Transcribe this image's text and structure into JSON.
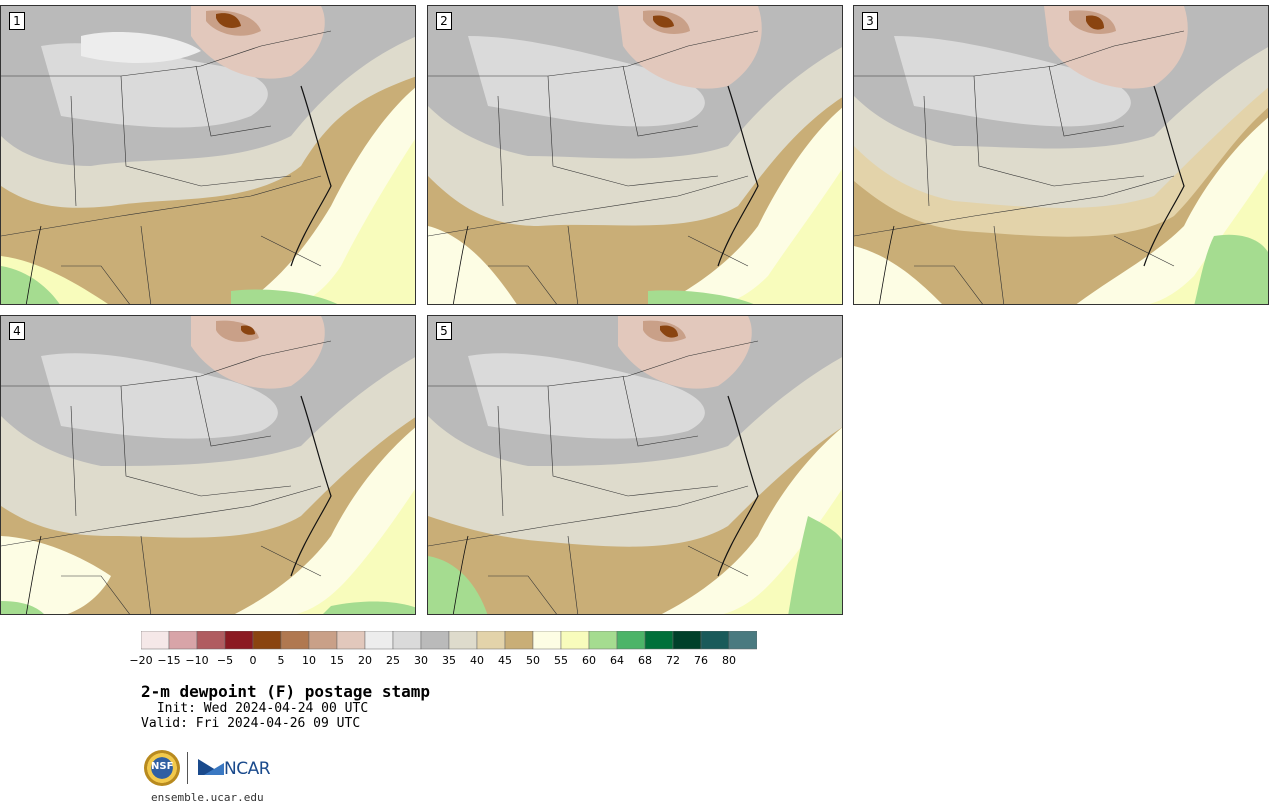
{
  "panels": [
    {
      "id": 1,
      "label": "1"
    },
    {
      "id": 2,
      "label": "2"
    },
    {
      "id": 3,
      "label": "3"
    },
    {
      "id": 4,
      "label": "4"
    },
    {
      "id": 5,
      "label": "5"
    }
  ],
  "colorbar": {
    "colors": [
      "#f5e8e8",
      "#d8a4a8",
      "#b05c60",
      "#8b1a22",
      "#8a4410",
      "#b07850",
      "#c9a088",
      "#e2c8bc",
      "#ededed",
      "#dadada",
      "#bababa",
      "#dedbcc",
      "#e3d3aa",
      "#c9ae77",
      "#fdfde4",
      "#f8fcbc",
      "#a5dc90",
      "#4cb468",
      "#00703a",
      "#00402a",
      "#1a5a5a",
      "#4a7a80"
    ],
    "tick_labels": [
      "−20",
      "−15",
      "−10",
      "−5",
      "0",
      "5",
      "10",
      "15",
      "20",
      "25",
      "30",
      "35",
      "40",
      "45",
      "50",
      "55",
      "60",
      "64",
      "68",
      "72",
      "76",
      "80"
    ]
  },
  "title": "2-m dewpoint (F) postage stamp",
  "init": " Init: Wed 2024-04-24 00 UTC",
  "valid": "Valid: Fri 2024-04-26 09 UTC",
  "logo": {
    "nsf": "NSF",
    "ncar": "NCAR"
  },
  "website": "ensemble.ucar.edu"
}
